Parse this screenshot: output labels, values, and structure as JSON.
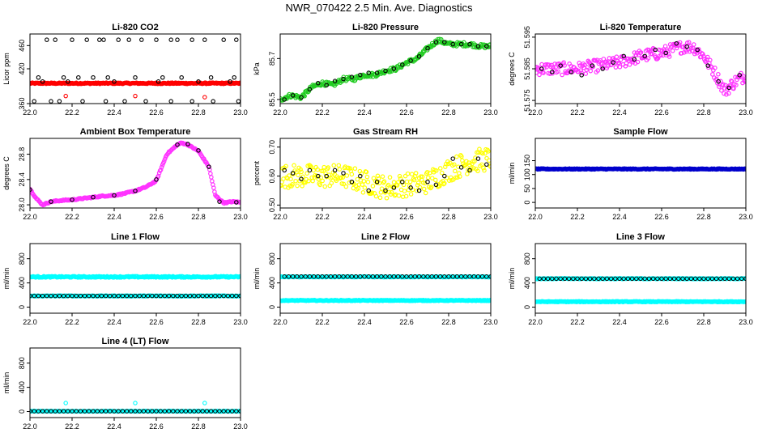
{
  "page": {
    "title": "NWR_070422  2.5 Min. Ave. Diagnostics"
  },
  "colors": {
    "red": "#ff0000",
    "green": "#22cc22",
    "magenta": "#ff33ff",
    "yellow": "#ffff00",
    "cyan": "#00ffff",
    "blue": "#0000cc",
    "black": "#000000"
  },
  "chart_data": [
    {
      "type": "scatter",
      "title": "Li-820 CO2",
      "xlabel": "",
      "ylabel": "Licor ppm",
      "xlim": [
        22.0,
        23.0
      ],
      "ylim": [
        360,
        480
      ],
      "xticks": [
        "22.0",
        "22.2",
        "22.4",
        "22.6",
        "22.8",
        "23.0"
      ],
      "yticks": [
        "360",
        "420",
        "460"
      ],
      "series": [
        {
          "color": "#ff0000",
          "style": "dense",
          "x": [
            22.0,
            23.0
          ],
          "y": [
            395,
            395
          ],
          "noise": 1
        },
        {
          "color": "#ff0000",
          "style": "points",
          "x": [
            22.17,
            22.5,
            22.83
          ],
          "y": [
            373,
            373,
            371
          ]
        },
        {
          "color": "#000000",
          "style": "points",
          "x": [
            22.08,
            22.12,
            22.2,
            22.27,
            22.33,
            22.35,
            22.42,
            22.47,
            22.53,
            22.6,
            22.67,
            22.7,
            22.77,
            22.83,
            22.92,
            22.98,
            22.04,
            22.16,
            22.23,
            22.3,
            22.37,
            22.5,
            22.63,
            22.72,
            22.86,
            22.97,
            22.02,
            22.1,
            22.14,
            22.25,
            22.36,
            22.45,
            22.55,
            22.67,
            22.77,
            22.87,
            22.99,
            22.06,
            22.18,
            22.4,
            22.61,
            22.8,
            22.95
          ],
          "y": [
            470,
            470,
            470,
            470,
            470,
            470,
            470,
            470,
            470,
            470,
            470,
            470,
            470,
            470,
            470,
            470,
            405,
            405,
            405,
            405,
            405,
            405,
            405,
            405,
            405,
            405,
            364,
            364,
            364,
            364,
            364,
            364,
            364,
            364,
            364,
            364,
            364,
            398,
            398,
            398,
            398,
            398,
            398
          ]
        }
      ]
    },
    {
      "type": "scatter",
      "title": "Li-820 Pressure",
      "xlabel": "",
      "ylabel": "kPa",
      "xlim": [
        22.0,
        23.0
      ],
      "ylim": [
        85.48,
        85.82
      ],
      "xticks": [
        "22.0",
        "22.2",
        "22.4",
        "22.6",
        "22.8",
        "23.0"
      ],
      "yticks": [
        "85.5",
        "85.7"
      ],
      "series": [
        {
          "color": "#22cc22",
          "style": "dense",
          "x": [
            22.0,
            22.05,
            22.1,
            22.15,
            22.2,
            22.25,
            22.3,
            22.35,
            22.4,
            22.45,
            22.5,
            22.55,
            22.6,
            22.65,
            22.7,
            22.75,
            22.8,
            22.85,
            22.9,
            22.95,
            23.0
          ],
          "y": [
            85.5,
            85.52,
            85.51,
            85.56,
            85.58,
            85.57,
            85.6,
            85.6,
            85.62,
            85.62,
            85.64,
            85.65,
            85.68,
            85.7,
            85.75,
            85.79,
            85.77,
            85.77,
            85.77,
            85.76,
            85.76
          ],
          "noise": 0.01
        },
        {
          "color": "#000000",
          "style": "points",
          "x": [
            22.02,
            22.06,
            22.1,
            22.14,
            22.18,
            22.22,
            22.26,
            22.3,
            22.34,
            22.38,
            22.42,
            22.46,
            22.5,
            22.54,
            22.58,
            22.62,
            22.66,
            22.7,
            22.74,
            22.78,
            22.82,
            22.86,
            22.9,
            22.94,
            22.98
          ],
          "y": [
            85.5,
            85.52,
            85.51,
            85.55,
            85.58,
            85.57,
            85.59,
            85.6,
            85.61,
            85.62,
            85.63,
            85.63,
            85.64,
            85.65,
            85.67,
            85.69,
            85.71,
            85.75,
            85.78,
            85.78,
            85.77,
            85.77,
            85.77,
            85.76,
            85.76
          ]
        }
      ]
    },
    {
      "type": "scatter",
      "title": "Li-820 Temperature",
      "xlabel": "",
      "ylabel": "degrees C",
      "xlim": [
        22.0,
        23.0
      ],
      "ylim": [
        51.574,
        51.596
      ],
      "xticks": [
        "22.0",
        "22.2",
        "22.4",
        "22.6",
        "22.8",
        "23.0"
      ],
      "yticks": [
        "51.575",
        "51.585",
        "51.595"
      ],
      "series": [
        {
          "color": "#ff33ff",
          "style": "dense",
          "x": [
            22.0,
            22.1,
            22.2,
            22.3,
            22.4,
            22.5,
            22.6,
            22.7,
            22.75,
            22.8,
            22.85,
            22.9,
            22.95,
            23.0
          ],
          "y": [
            51.585,
            51.585,
            51.585,
            51.586,
            51.587,
            51.589,
            51.59,
            51.592,
            51.592,
            51.589,
            51.584,
            51.578,
            51.581,
            51.583
          ],
          "noise": 0.002
        },
        {
          "color": "#000000",
          "style": "points",
          "x": [
            22.03,
            22.08,
            22.12,
            22.17,
            22.22,
            22.27,
            22.32,
            22.37,
            22.42,
            22.47,
            22.52,
            22.57,
            22.62,
            22.67,
            22.72,
            22.77,
            22.82,
            22.87,
            22.92,
            22.97
          ],
          "y": [
            51.585,
            51.584,
            51.586,
            51.584,
            51.583,
            51.586,
            51.585,
            51.587,
            51.589,
            51.588,
            51.589,
            51.591,
            51.59,
            51.593,
            51.592,
            51.591,
            51.586,
            51.581,
            51.579,
            51.583
          ]
        }
      ]
    },
    {
      "type": "scatter",
      "title": "Ambient Box Temperature",
      "xlabel": "",
      "ylabel": "degrees C",
      "xlim": [
        22.0,
        23.0
      ],
      "ylim": [
        27.95,
        29.05
      ],
      "xticks": [
        "22.0",
        "22.2",
        "22.4",
        "22.6",
        "22.8",
        "23.0"
      ],
      "yticks": [
        "28.0",
        "28.4",
        "28.8"
      ],
      "series": [
        {
          "color": "#ff33ff",
          "style": "dense",
          "x": [
            22.0,
            22.03,
            22.06,
            22.1,
            22.15,
            22.2,
            22.25,
            22.3,
            22.35,
            22.4,
            22.45,
            22.5,
            22.55,
            22.6,
            22.65,
            22.7,
            22.72,
            22.75,
            22.8,
            22.85,
            22.88,
            22.92,
            22.96,
            23.0
          ],
          "y": [
            28.25,
            28.1,
            28.0,
            28.05,
            28.07,
            28.08,
            28.1,
            28.12,
            28.14,
            28.15,
            28.18,
            28.22,
            28.28,
            28.38,
            28.8,
            28.95,
            28.98,
            28.95,
            28.85,
            28.6,
            28.15,
            28.03,
            28.05,
            28.04
          ],
          "noise": 0.01
        },
        {
          "color": "#000000",
          "style": "points",
          "x": [
            22.0,
            22.1,
            22.2,
            22.3,
            22.4,
            22.5,
            22.6,
            22.7,
            22.75,
            22.8,
            22.85,
            22.9,
            22.98
          ],
          "y": [
            28.24,
            28.05,
            28.08,
            28.12,
            28.15,
            28.22,
            28.4,
            28.95,
            28.96,
            28.86,
            28.6,
            28.05,
            28.04
          ]
        }
      ]
    },
    {
      "type": "scatter",
      "title": "Gas Stream RH",
      "xlabel": "",
      "ylabel": "percent",
      "xlim": [
        22.0,
        23.0
      ],
      "ylim": [
        0.49,
        0.73
      ],
      "xticks": [
        "22.0",
        "22.2",
        "22.4",
        "22.6",
        "22.8",
        "23.0"
      ],
      "yticks": [
        "0.50",
        "0.60",
        "0.70"
      ],
      "series": [
        {
          "color": "#ffff00",
          "style": "dense",
          "x": [
            22.0,
            22.1,
            22.2,
            22.3,
            22.4,
            22.5,
            22.6,
            22.7,
            22.8,
            22.9,
            23.0
          ],
          "y": [
            0.6,
            0.6,
            0.6,
            0.6,
            0.58,
            0.56,
            0.57,
            0.58,
            0.62,
            0.65,
            0.66
          ],
          "noise": 0.04
        },
        {
          "color": "#000000",
          "style": "points",
          "x": [
            22.02,
            22.06,
            22.1,
            22.14,
            22.18,
            22.22,
            22.26,
            22.3,
            22.34,
            22.38,
            22.42,
            22.46,
            22.5,
            22.54,
            22.58,
            22.62,
            22.66,
            22.7,
            22.74,
            22.78,
            22.82,
            22.86,
            22.9,
            22.94,
            22.98
          ],
          "y": [
            0.62,
            0.61,
            0.59,
            0.62,
            0.6,
            0.6,
            0.62,
            0.61,
            0.58,
            0.6,
            0.55,
            0.58,
            0.55,
            0.56,
            0.58,
            0.56,
            0.55,
            0.58,
            0.57,
            0.6,
            0.66,
            0.63,
            0.62,
            0.66,
            0.64
          ]
        }
      ]
    },
    {
      "type": "scatter",
      "title": "Sample Flow",
      "xlabel": "",
      "ylabel": "ml/min",
      "xlim": [
        22.0,
        23.0
      ],
      "ylim": [
        -20,
        230
      ],
      "xticks": [
        "22.0",
        "22.2",
        "22.4",
        "22.6",
        "22.8",
        "23.0"
      ],
      "yticks": [
        "0",
        "50",
        "100",
        "150"
      ],
      "series": [
        {
          "color": "#0000cc",
          "style": "dense",
          "x": [
            22.0,
            23.0
          ],
          "y": [
            120,
            120
          ],
          "noise": 1.5
        }
      ]
    },
    {
      "type": "scatter",
      "title": "Line 1 Flow",
      "xlabel": "",
      "ylabel": "ml/min",
      "xlim": [
        22.0,
        23.0
      ],
      "ylim": [
        -100,
        1050
      ],
      "xticks": [
        "22.0",
        "22.2",
        "22.4",
        "22.6",
        "22.8",
        "23.0"
      ],
      "yticks": [
        "0",
        "400",
        "800"
      ],
      "series": [
        {
          "color": "#00ffff",
          "style": "dense",
          "x": [
            22.0,
            23.0
          ],
          "y": [
            500,
            500
          ],
          "noise": 10
        },
        {
          "color": "#00ffff",
          "style": "dense",
          "x": [
            22.0,
            23.0
          ],
          "y": [
            185,
            185
          ],
          "noise": 6
        },
        {
          "color": "#000000",
          "style": "circles",
          "x": [
            22.0,
            23.0
          ],
          "y": [
            185,
            185
          ],
          "step": 0.02
        }
      ]
    },
    {
      "type": "scatter",
      "title": "Line 2 Flow",
      "xlabel": "",
      "ylabel": "ml/min",
      "xlim": [
        22.0,
        23.0
      ],
      "ylim": [
        -100,
        1050
      ],
      "xticks": [
        "22.0",
        "22.2",
        "22.4",
        "22.6",
        "22.8",
        "23.0"
      ],
      "yticks": [
        "0",
        "400",
        "800"
      ],
      "series": [
        {
          "color": "#00ffff",
          "style": "dense",
          "x": [
            22.0,
            23.0
          ],
          "y": [
            110,
            110
          ],
          "noise": 6
        },
        {
          "color": "#00ffff",
          "style": "dense",
          "x": [
            22.0,
            23.0
          ],
          "y": [
            500,
            500
          ],
          "noise": 6
        },
        {
          "color": "#000000",
          "style": "circles",
          "x": [
            22.02,
            23.0
          ],
          "y": [
            505,
            505
          ],
          "step": 0.02
        }
      ]
    },
    {
      "type": "scatter",
      "title": "Line 3 Flow",
      "xlabel": "",
      "ylabel": "ml/min",
      "xlim": [
        22.0,
        23.0
      ],
      "ylim": [
        -100,
        1050
      ],
      "xticks": [
        "22.0",
        "22.2",
        "22.4",
        "22.6",
        "22.8",
        "23.0"
      ],
      "yticks": [
        "0",
        "400",
        "800"
      ],
      "series": [
        {
          "color": "#00ffff",
          "style": "dense",
          "x": [
            22.0,
            23.0
          ],
          "y": [
            90,
            90
          ],
          "noise": 6
        },
        {
          "color": "#00ffff",
          "style": "dense",
          "x": [
            22.0,
            23.0
          ],
          "y": [
            470,
            470
          ],
          "noise": 6
        },
        {
          "color": "#000000",
          "style": "circles",
          "x": [
            22.02,
            23.0
          ],
          "y": [
            470,
            470
          ],
          "step": 0.02
        }
      ]
    },
    {
      "type": "scatter",
      "title": "Line 4 (LT) Flow",
      "xlabel": "",
      "ylabel": "ml/min",
      "xlim": [
        22.0,
        23.0
      ],
      "ylim": [
        -100,
        1050
      ],
      "xticks": [
        "22.0",
        "22.2",
        "22.4",
        "22.6",
        "22.8",
        "23.0"
      ],
      "yticks": [
        "0",
        "400",
        "800"
      ],
      "series": [
        {
          "color": "#00ffff",
          "style": "dense",
          "x": [
            22.0,
            23.0
          ],
          "y": [
            5,
            5
          ],
          "noise": 4
        },
        {
          "color": "#00ffff",
          "style": "points",
          "x": [
            22.17,
            22.5,
            22.83
          ],
          "y": [
            140,
            140,
            140
          ]
        },
        {
          "color": "#000000",
          "style": "circles",
          "x": [
            22.0,
            23.0
          ],
          "y": [
            5,
            5
          ],
          "step": 0.02
        }
      ]
    }
  ]
}
